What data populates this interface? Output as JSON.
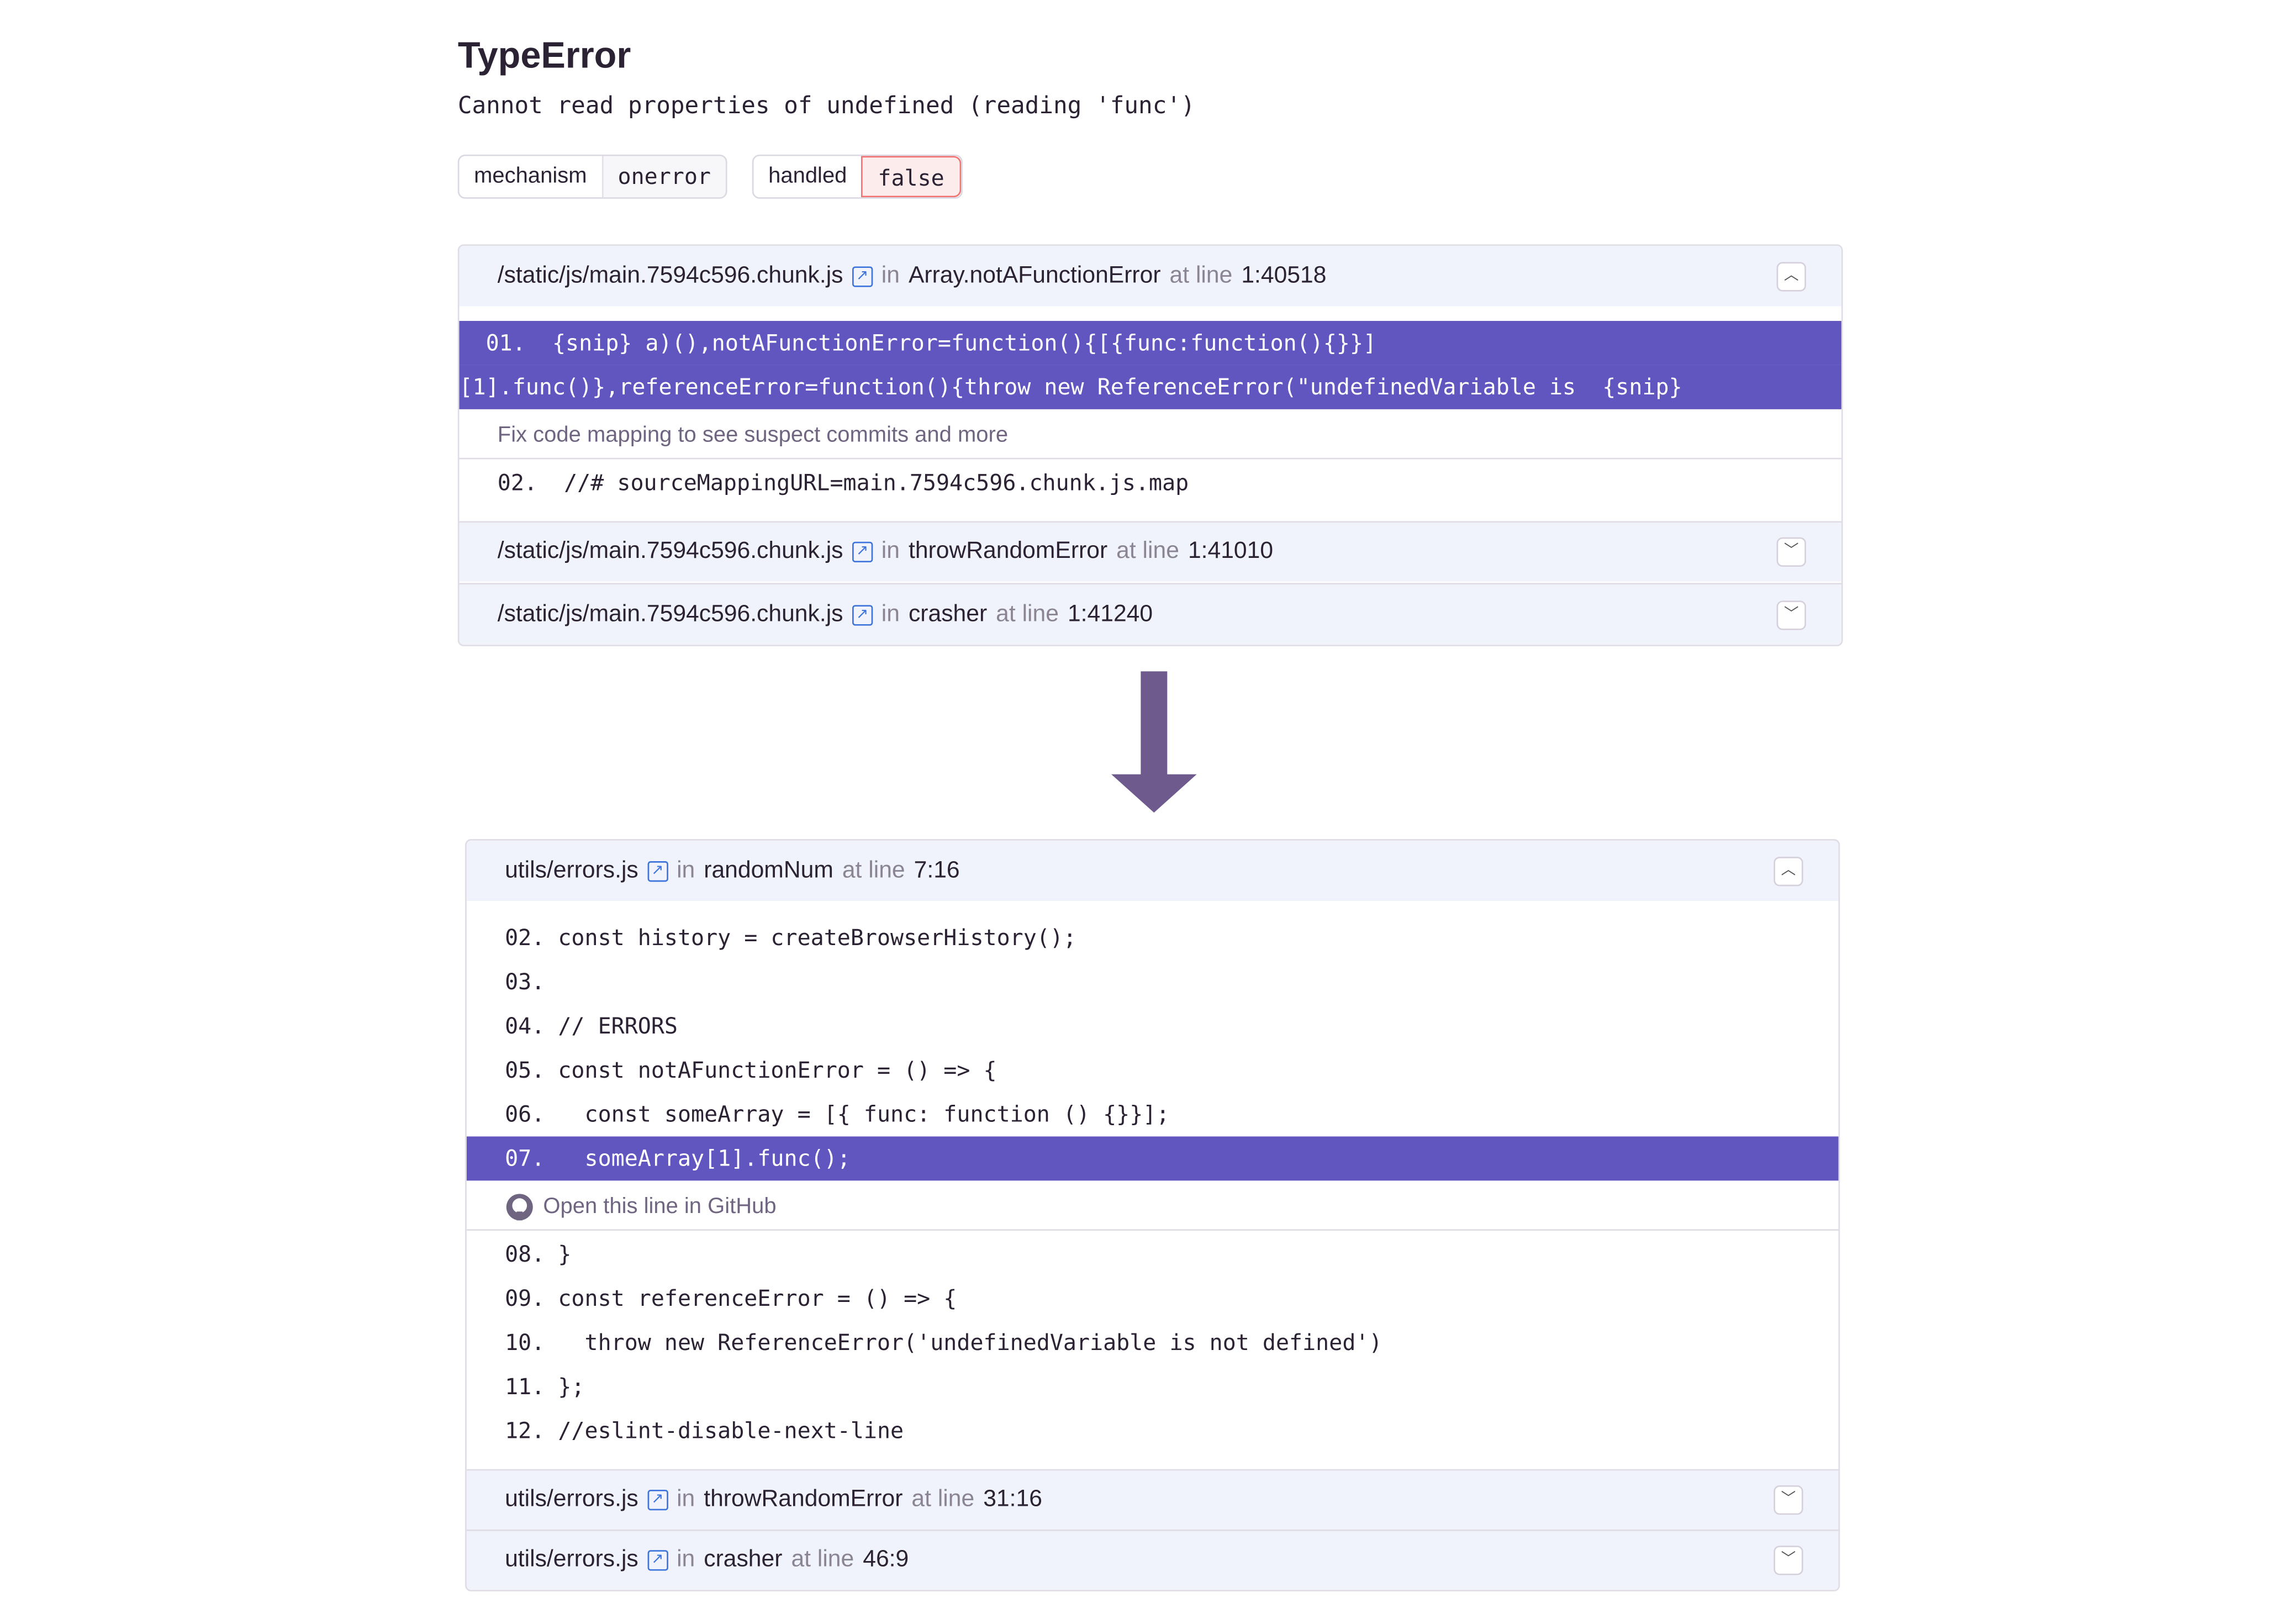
{
  "error": {
    "type": "TypeError",
    "message": "Cannot read properties of undefined (reading 'func')",
    "tags": [
      {
        "key": "mechanism",
        "value": "onerror"
      },
      {
        "key": "handled",
        "value": "false"
      }
    ]
  },
  "labels": {
    "in": "in",
    "at_line": "at line"
  },
  "before": {
    "frames": [
      {
        "file": "/static/js/main.7594c596.chunk.js",
        "function": "Array.notAFunctionError",
        "line": "1:40518",
        "expanded": true
      },
      {
        "file": "/static/js/main.7594c596.chunk.js",
        "function": "throwRandomError",
        "line": "1:41010",
        "expanded": false
      },
      {
        "file": "/static/js/main.7594c596.chunk.js",
        "function": "crasher",
        "line": "1:41240",
        "expanded": false
      }
    ],
    "highlight": [
      "  01.  {snip} a)(),notAFunctionError=function(){[{func:function(){}}]",
      "[1].func()},referenceError=function(){throw new ReferenceError(\"undefinedVariable is  {snip}"
    ],
    "note": "Fix code mapping to see suspect commits and more",
    "line2": "02.  //# sourceMappingURL=main.7594c596.chunk.js.map"
  },
  "after": {
    "frames": [
      {
        "file": "utils/errors.js",
        "function": "randomNum",
        "line": "7:16",
        "expanded": true
      },
      {
        "file": "utils/errors.js",
        "function": "throwRandomError",
        "line": "31:16",
        "expanded": false
      },
      {
        "file": "utils/errors.js",
        "function": "crasher",
        "line": "46:9",
        "expanded": false
      }
    ],
    "lines_before": [
      "02. const history = createBrowserHistory();",
      "03.",
      "04. // ERRORS",
      "05. const notAFunctionError = () => {",
      "06.   const someArray = [{ func: function () {}}];"
    ],
    "highlight": "07.   someArray[1].func();",
    "github": "Open this line in GitHub",
    "lines_after": [
      "08. }",
      "09. const referenceError = () => {",
      "10.   throw new ReferenceError('undefinedVariable is not defined')",
      "11. };",
      "12. //eslint-disable-next-line"
    ]
  },
  "colors": {
    "highlight": "#6155bf",
    "arrow": "#6e5a8c",
    "frame_bg": "#f0f3fb"
  }
}
